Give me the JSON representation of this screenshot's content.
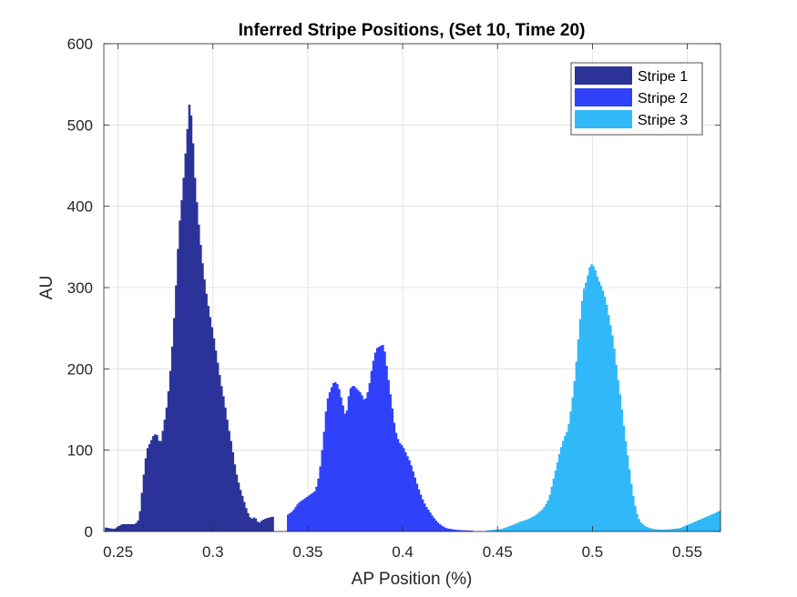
{
  "chart_data": {
    "type": "bar",
    "title": "Inferred Stripe Positions,  (Set 10, Time 20)",
    "xlabel": "AP Position (%)",
    "ylabel": "AU",
    "xlim": [
      0.2425,
      0.5675
    ],
    "ylim": [
      0,
      600
    ],
    "xticks": [
      "0.25",
      "0.3",
      "0.35",
      "0.4",
      "0.45",
      "0.5",
      "0.55"
    ],
    "xtick_values": [
      0.25,
      0.3,
      0.35,
      0.4,
      0.45,
      0.5,
      0.55
    ],
    "yticks": [
      "0",
      "100",
      "200",
      "300",
      "400",
      "500",
      "600"
    ],
    "ytick_values": [
      0,
      100,
      200,
      300,
      400,
      500,
      600
    ],
    "grid": true,
    "legend_position": "top-right",
    "series": [
      {
        "name": "Stripe 1",
        "color": "#2b3399",
        "points": [
          [
            0.243,
            5
          ],
          [
            0.248,
            3
          ],
          [
            0.252,
            9
          ],
          [
            0.256,
            9
          ],
          [
            0.259,
            9
          ],
          [
            0.261,
            15
          ],
          [
            0.262,
            35
          ],
          [
            0.263,
            60
          ],
          [
            0.265,
            100
          ],
          [
            0.267,
            110
          ],
          [
            0.269,
            120
          ],
          [
            0.271,
            118
          ],
          [
            0.272,
            105
          ],
          [
            0.274,
            130
          ],
          [
            0.276,
            160
          ],
          [
            0.278,
            210
          ],
          [
            0.28,
            280
          ],
          [
            0.282,
            370
          ],
          [
            0.284,
            420
          ],
          [
            0.286,
            480
          ],
          [
            0.2875,
            525
          ],
          [
            0.289,
            505
          ],
          [
            0.29,
            450
          ],
          [
            0.292,
            390
          ],
          [
            0.294,
            340
          ],
          [
            0.296,
            300
          ],
          [
            0.298,
            270
          ],
          [
            0.3,
            245
          ],
          [
            0.302,
            215
          ],
          [
            0.304,
            185
          ],
          [
            0.306,
            160
          ],
          [
            0.308,
            130
          ],
          [
            0.31,
            105
          ],
          [
            0.312,
            75
          ],
          [
            0.314,
            55
          ],
          [
            0.316,
            40
          ],
          [
            0.318,
            25
          ],
          [
            0.32,
            15
          ],
          [
            0.322,
            18
          ],
          [
            0.324,
            10
          ],
          [
            0.326,
            14
          ],
          [
            0.328,
            16
          ],
          [
            0.331,
            18
          ]
        ]
      },
      {
        "name": "Stripe 2",
        "color": "#3041fa",
        "points": [
          [
            0.339,
            20
          ],
          [
            0.342,
            25
          ],
          [
            0.345,
            35
          ],
          [
            0.348,
            40
          ],
          [
            0.351,
            45
          ],
          [
            0.354,
            50
          ],
          [
            0.356,
            70
          ],
          [
            0.358,
            110
          ],
          [
            0.36,
            160
          ],
          [
            0.362,
            175
          ],
          [
            0.364,
            185
          ],
          [
            0.366,
            180
          ],
          [
            0.368,
            160
          ],
          [
            0.37,
            140
          ],
          [
            0.372,
            175
          ],
          [
            0.374,
            180
          ],
          [
            0.376,
            175
          ],
          [
            0.378,
            170
          ],
          [
            0.38,
            160
          ],
          [
            0.382,
            175
          ],
          [
            0.384,
            205
          ],
          [
            0.386,
            225
          ],
          [
            0.388,
            228
          ],
          [
            0.39,
            230
          ],
          [
            0.392,
            195
          ],
          [
            0.394,
            160
          ],
          [
            0.396,
            125
          ],
          [
            0.398,
            110
          ],
          [
            0.4,
            105
          ],
          [
            0.402,
            95
          ],
          [
            0.404,
            85
          ],
          [
            0.406,
            70
          ],
          [
            0.408,
            55
          ],
          [
            0.41,
            42
          ],
          [
            0.412,
            32
          ],
          [
            0.414,
            25
          ],
          [
            0.416,
            18
          ],
          [
            0.418,
            12
          ],
          [
            0.42,
            8
          ],
          [
            0.423,
            4
          ],
          [
            0.428,
            2
          ],
          [
            0.436,
            1
          ]
        ]
      },
      {
        "name": "Stripe 3",
        "color": "#30b8f8",
        "points": [
          [
            0.444,
            1
          ],
          [
            0.452,
            3
          ],
          [
            0.458,
            8
          ],
          [
            0.462,
            12
          ],
          [
            0.466,
            15
          ],
          [
            0.47,
            20
          ],
          [
            0.474,
            28
          ],
          [
            0.477,
            40
          ],
          [
            0.479,
            60
          ],
          [
            0.481,
            80
          ],
          [
            0.483,
            100
          ],
          [
            0.485,
            115
          ],
          [
            0.487,
            125
          ],
          [
            0.489,
            155
          ],
          [
            0.491,
            195
          ],
          [
            0.493,
            250
          ],
          [
            0.495,
            295
          ],
          [
            0.497,
            310
          ],
          [
            0.499,
            330
          ],
          [
            0.501,
            325
          ],
          [
            0.503,
            310
          ],
          [
            0.505,
            300
          ],
          [
            0.507,
            285
          ],
          [
            0.509,
            260
          ],
          [
            0.511,
            235
          ],
          [
            0.513,
            195
          ],
          [
            0.515,
            160
          ],
          [
            0.517,
            120
          ],
          [
            0.519,
            85
          ],
          [
            0.521,
            50
          ],
          [
            0.523,
            25
          ],
          [
            0.525,
            12
          ],
          [
            0.528,
            6
          ],
          [
            0.532,
            3
          ],
          [
            0.537,
            2
          ],
          [
            0.542,
            3
          ],
          [
            0.546,
            4
          ],
          [
            0.549,
            7
          ],
          [
            0.552,
            10
          ],
          [
            0.556,
            14
          ],
          [
            0.56,
            18
          ],
          [
            0.564,
            22
          ],
          [
            0.5675,
            26
          ]
        ]
      }
    ]
  }
}
